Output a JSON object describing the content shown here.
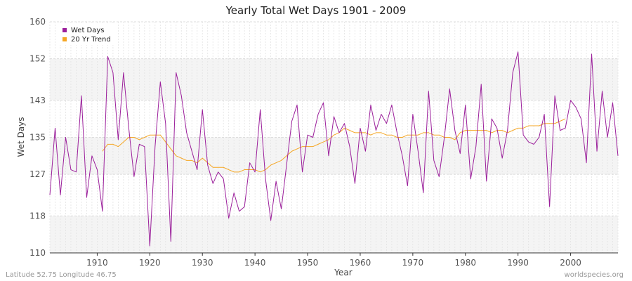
{
  "chart_data": {
    "type": "line",
    "title": "Yearly Total Wet Days 1901 - 2009",
    "xlabel": "Year",
    "ylabel": "Wet Days",
    "xlim": [
      1901,
      2009
    ],
    "ylim": [
      110,
      160
    ],
    "yticks": [
      110,
      118,
      127,
      135,
      143,
      152,
      160
    ],
    "xticks": [
      1910,
      1920,
      1930,
      1940,
      1950,
      1960,
      1970,
      1980,
      1990,
      2000
    ],
    "grid": true,
    "legend_position": "top-left",
    "colors": {
      "wet_days": "#9b1f9b",
      "trend": "#f5a623"
    },
    "series": [
      {
        "name": "Wet Days",
        "x": [
          1901,
          1902,
          1903,
          1904,
          1905,
          1906,
          1907,
          1908,
          1909,
          1910,
          1911,
          1912,
          1913,
          1914,
          1915,
          1916,
          1917,
          1918,
          1919,
          1920,
          1921,
          1922,
          1923,
          1924,
          1925,
          1926,
          1927,
          1928,
          1929,
          1930,
          1931,
          1932,
          1933,
          1934,
          1935,
          1936,
          1937,
          1938,
          1939,
          1940,
          1941,
          1942,
          1943,
          1944,
          1945,
          1946,
          1947,
          1948,
          1949,
          1950,
          1951,
          1952,
          1953,
          1954,
          1955,
          1956,
          1957,
          1958,
          1959,
          1960,
          1961,
          1962,
          1963,
          1964,
          1965,
          1966,
          1967,
          1968,
          1969,
          1970,
          1971,
          1972,
          1973,
          1974,
          1975,
          1976,
          1977,
          1978,
          1979,
          1980,
          1981,
          1982,
          1983,
          1984,
          1985,
          1986,
          1987,
          1988,
          1989,
          1990,
          1991,
          1992,
          1993,
          1994,
          1995,
          1996,
          1997,
          1998,
          1999,
          2000,
          2001,
          2002,
          2003,
          2004,
          2005,
          2006,
          2007,
          2008,
          2009
        ],
        "values": [
          122.5,
          137,
          122.5,
          135,
          128,
          127.5,
          144,
          122,
          131,
          128,
          119,
          152.5,
          149,
          134.5,
          149,
          137,
          126.5,
          133.5,
          133,
          111.5,
          133,
          147,
          138,
          112.5,
          149,
          144,
          136,
          132,
          128,
          141,
          129,
          125,
          127.5,
          126,
          117.5,
          123,
          119,
          120,
          129.5,
          127.5,
          141,
          126,
          117,
          125.5,
          119.5,
          129,
          138.5,
          142,
          127.5,
          135.5,
          135,
          140,
          142.5,
          131,
          139.5,
          136,
          138,
          133,
          125,
          137,
          132,
          142,
          136.5,
          140,
          138,
          142,
          136,
          131,
          124.5,
          140,
          132,
          123,
          145,
          130,
          126.5,
          135,
          145.5,
          136.5,
          131.5,
          142,
          126,
          133,
          146.5,
          125.5,
          139,
          137,
          130.5,
          136.5,
          149,
          153.5,
          135.5,
          134,
          133.5,
          135,
          140,
          120,
          144,
          136.5,
          137,
          143,
          141.5,
          139,
          129.5,
          153,
          132,
          145,
          135,
          142.5,
          131
        ]
      },
      {
        "name": "20 Yr Trend",
        "x": [
          1911,
          1912,
          1913,
          1914,
          1915,
          1916,
          1917,
          1918,
          1919,
          1920,
          1921,
          1922,
          1923,
          1924,
          1925,
          1926,
          1927,
          1928,
          1929,
          1930,
          1931,
          1932,
          1933,
          1934,
          1935,
          1936,
          1937,
          1938,
          1939,
          1940,
          1941,
          1942,
          1943,
          1944,
          1945,
          1946,
          1947,
          1948,
          1949,
          1950,
          1951,
          1952,
          1953,
          1954,
          1955,
          1956,
          1957,
          1958,
          1959,
          1960,
          1961,
          1962,
          1963,
          1964,
          1965,
          1966,
          1967,
          1968,
          1969,
          1970,
          1971,
          1972,
          1973,
          1974,
          1975,
          1976,
          1977,
          1978,
          1979,
          1980,
          1981,
          1982,
          1983,
          1984,
          1985,
          1986,
          1987,
          1988,
          1989,
          1990,
          1991,
          1992,
          1993,
          1994,
          1995,
          1996,
          1997,
          1998,
          1999
        ],
        "values": [
          132,
          133.5,
          133.5,
          133,
          134,
          135,
          135,
          134.5,
          135,
          135.5,
          135.5,
          135.5,
          134,
          132.5,
          131,
          130.5,
          130,
          130,
          129.5,
          130.5,
          129.5,
          128.5,
          128.5,
          128.5,
          128,
          127.5,
          127.5,
          128,
          128,
          128,
          127.5,
          128,
          129,
          129.5,
          130,
          131,
          132,
          132.5,
          133,
          133,
          133,
          133.5,
          134,
          134.5,
          135.5,
          136,
          137,
          136.5,
          136,
          136,
          136,
          135.5,
          136,
          136,
          135.5,
          135.5,
          135,
          135,
          135.5,
          135.5,
          135.5,
          136,
          136,
          135.5,
          135.5,
          135,
          135,
          134.5,
          136,
          136.5,
          136.5,
          136.5,
          136.5,
          136.5,
          136,
          136.5,
          136.5,
          136,
          136.5,
          137,
          137,
          137.5,
          137.5,
          137.5,
          138,
          138,
          138,
          138.5,
          139
        ]
      }
    ]
  },
  "footer": {
    "location": "Latitude 52.75 Longitude 46.75",
    "site": "worldspecies.org"
  }
}
